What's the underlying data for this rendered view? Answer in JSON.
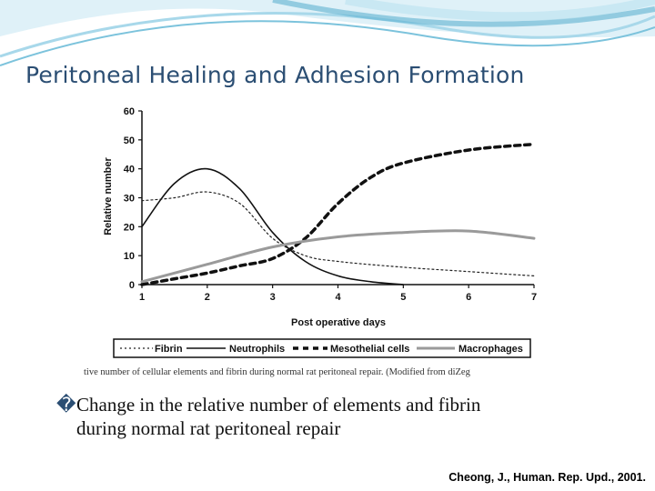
{
  "slide": {
    "title": "Peritoneal Healing and Adhesion Formation",
    "caption_bullet": "�",
    "caption_line1": "Change in the relative number of elements and fibrin",
    "caption_line2": "during normal rat peritoneal repair",
    "citation": "Cheong,  J., Human. Rep. Upd., 2001.",
    "figure_source_fragment": "tive number of cellular elements and fibrin during normal rat peritoneal repair. (Modified from diZeg"
  },
  "colors": {
    "title": "#2b4e73",
    "swoosh": "#5fb3d1",
    "fibrin": "#222222",
    "neutrophils": "#111111",
    "mesothelial": "#111111",
    "macrophages": "#9a9a9a"
  },
  "chart_data": {
    "type": "line",
    "xlabel": "Post operative days",
    "ylabel": "Relative number",
    "xlim": [
      1,
      7
    ],
    "ylim": [
      0,
      60
    ],
    "xticks": [
      1,
      2,
      3,
      4,
      5,
      6,
      7
    ],
    "yticks": [
      0,
      10,
      20,
      30,
      40,
      50,
      60
    ],
    "grid": false,
    "legend_position": "bottom",
    "series": [
      {
        "name": "Fibrin",
        "style": "dotted",
        "x": [
          1,
          1.5,
          2,
          2.5,
          3,
          3.5,
          4,
          5,
          6,
          7
        ],
        "y": [
          29,
          30,
          32,
          28,
          16,
          10,
          8,
          6,
          4.5,
          3
        ]
      },
      {
        "name": "Neutrophils",
        "style": "solid",
        "x": [
          1,
          1.5,
          2,
          2.5,
          3,
          3.5,
          4,
          4.5,
          5
        ],
        "y": [
          20,
          35,
          40,
          33,
          18,
          8,
          3,
          1,
          0
        ]
      },
      {
        "name": "Mesothelial cells",
        "style": "dashed",
        "x": [
          1,
          1.5,
          2,
          2.5,
          3,
          3.5,
          4,
          4.5,
          5,
          6,
          7
        ],
        "y": [
          0,
          2,
          4,
          6.5,
          9,
          16,
          28,
          37,
          42,
          46.5,
          48.5
        ]
      },
      {
        "name": "Macrophages",
        "style": "solid",
        "x": [
          1,
          2,
          3,
          4,
          5,
          6,
          7
        ],
        "y": [
          1,
          7,
          13,
          16.5,
          18,
          18.5,
          16
        ]
      }
    ]
  }
}
